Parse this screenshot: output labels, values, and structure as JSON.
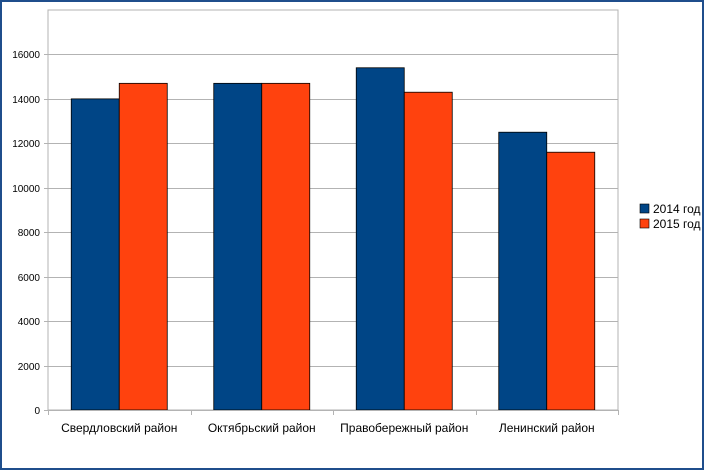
{
  "chart_data": {
    "type": "bar",
    "title": "",
    "xlabel": "",
    "ylabel": "",
    "categories": [
      "Свердловский район",
      "Октябрьский район",
      "Правобережный район",
      "Ленинский район"
    ],
    "series": [
      {
        "name": "2014 год",
        "color": "#004586",
        "values": [
          14000,
          14700,
          15400,
          12500
        ]
      },
      {
        "name": "2015 год",
        "color": "#ff420e",
        "values": [
          14700,
          14700,
          14300,
          11600
        ]
      }
    ],
    "ylim": [
      0,
      18000
    ],
    "yticks": [
      0,
      2000,
      4000,
      6000,
      8000,
      10000,
      12000,
      14000,
      16000
    ],
    "grid": true,
    "legend": "right"
  }
}
